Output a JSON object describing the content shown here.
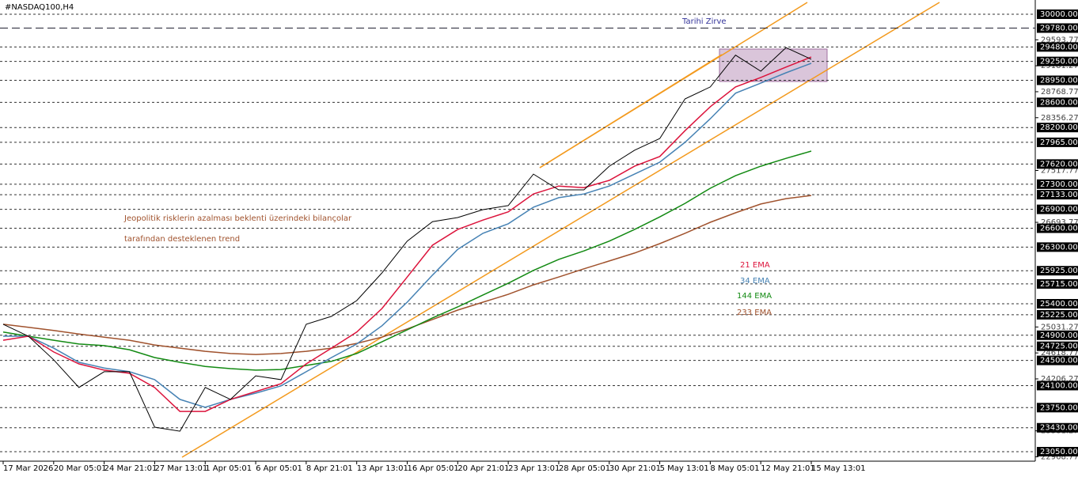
{
  "chart_data": {
    "type": "line",
    "title": "#NASDAQ100,H4",
    "categories": [
      "17 Mar 2026",
      null,
      "20 Mar 05:01",
      null,
      "24 Mar 21:01",
      null,
      "27 Mar 13:01",
      null,
      "1 Apr 05:01",
      null,
      "6 Apr 05:01",
      null,
      "8 Apr 21:01",
      null,
      "13 Apr 13:01",
      null,
      "16 Apr 05:01",
      null,
      "20 Apr 21:01",
      null,
      "23 Apr 13:01",
      null,
      "28 Apr 05:01",
      null,
      "30 Apr 21:01",
      null,
      "5 May 13:01",
      null,
      "8 May 05:01",
      null,
      "12 May 21:01",
      null,
      "15 May 13:01"
    ],
    "price": {
      "color": "#000000",
      "values": [
        25075,
        24885,
        24510,
        24070,
        24320,
        24320,
        23440,
        23375,
        24070,
        23880,
        24255,
        24195,
        25075,
        25200,
        25450,
        25890,
        26395,
        26705,
        26770,
        26895,
        26960,
        27460,
        27210,
        27210,
        27585,
        27840,
        28025,
        28655,
        28845,
        29350,
        29095,
        29470,
        29285
      ]
    },
    "series": [
      {
        "name": "21 EMA",
        "color": "#dc143c",
        "values": [
          24820,
          24885,
          24635,
          24445,
          24345,
          24295,
          24070,
          23690,
          23690,
          23880,
          24005,
          24130,
          24445,
          24695,
          24950,
          25325,
          25825,
          26330,
          26580,
          26730,
          26860,
          27145,
          27270,
          27245,
          27360,
          27585,
          27740,
          28150,
          28530,
          28845,
          28995,
          29160,
          29320
        ]
      },
      {
        "name": "34 EMA",
        "color": "#4682b4",
        "values": [
          24885,
          24885,
          24695,
          24470,
          24380,
          24320,
          24195,
          23880,
          23755,
          23880,
          23980,
          24095,
          24320,
          24545,
          24760,
          25050,
          25425,
          25855,
          26265,
          26520,
          26670,
          26935,
          27085,
          27145,
          27270,
          27460,
          27650,
          27965,
          28340,
          28745,
          28905,
          29070,
          29220
        ]
      },
      {
        "name": "144 EMA",
        "color": "#138a13",
        "values": [
          24950,
          24885,
          24820,
          24760,
          24735,
          24670,
          24545,
          24470,
          24405,
          24370,
          24345,
          24355,
          24420,
          24485,
          24610,
          24795,
          24985,
          25175,
          25350,
          25540,
          25725,
          25930,
          26105,
          26240,
          26395,
          26580,
          26780,
          26995,
          27235,
          27435,
          27585,
          27710,
          27825
        ]
      },
      {
        "name": "233 EMA",
        "color": "#a0522d",
        "values": [
          25075,
          25025,
          24975,
          24920,
          24870,
          24820,
          24745,
          24695,
          24645,
          24610,
          24595,
          24610,
          24645,
          24695,
          24770,
          24870,
          25000,
          25150,
          25300,
          25425,
          25550,
          25700,
          25825,
          25955,
          26080,
          26205,
          26355,
          26520,
          26695,
          26845,
          26985,
          27070,
          27120
        ]
      }
    ],
    "ylim": [
      22899,
      30226
    ],
    "yticks": [
      29593.77,
      29181.27,
      28768.77,
      28356.27,
      27517.77,
      26693.77,
      25031.27,
      24618.77,
      24206.27,
      23381.27,
      22968.77
    ],
    "levels": [
      {
        "value": 30000,
        "label": "30000.00"
      },
      {
        "value": 29780,
        "label": "29780.00"
      },
      {
        "value": 29480,
        "label": "29480.00"
      },
      {
        "value": 29250,
        "label": "29250.00"
      },
      {
        "value": 28950,
        "label": "28950.00"
      },
      {
        "value": 28600,
        "label": "28600.00"
      },
      {
        "value": 28200,
        "label": "28200.00"
      },
      {
        "value": 27965,
        "label": "27965.00"
      },
      {
        "value": 27620,
        "label": "27620.00"
      },
      {
        "value": 27300,
        "label": "27300.00"
      },
      {
        "value": 27133,
        "label": "27133.00"
      },
      {
        "value": 26900,
        "label": "26900.00"
      },
      {
        "value": 26600,
        "label": "26600.00"
      },
      {
        "value": 26300,
        "label": "26300.00"
      },
      {
        "value": 25925,
        "label": "25925.00"
      },
      {
        "value": 25715,
        "label": "25715.00"
      },
      {
        "value": 25400,
        "label": "25400.00"
      },
      {
        "value": 25225,
        "label": "25225.00"
      },
      {
        "value": 24900,
        "label": "24900.00"
      },
      {
        "value": 24725,
        "label": "24725.00"
      },
      {
        "value": 24500,
        "label": "24500.00"
      },
      {
        "value": 24100,
        "label": "24100.00"
      },
      {
        "value": 23750,
        "label": "23750.00"
      },
      {
        "value": 23430,
        "label": "23430.00"
      },
      {
        "value": 23050,
        "label": "23050.00"
      }
    ],
    "peak_label": "Tarihi Zirve",
    "annotations": [
      "Jeopolitik risklerin azalması beklenti üzerindeki bilançolar",
      "tarafından desteklenen trend"
    ]
  }
}
